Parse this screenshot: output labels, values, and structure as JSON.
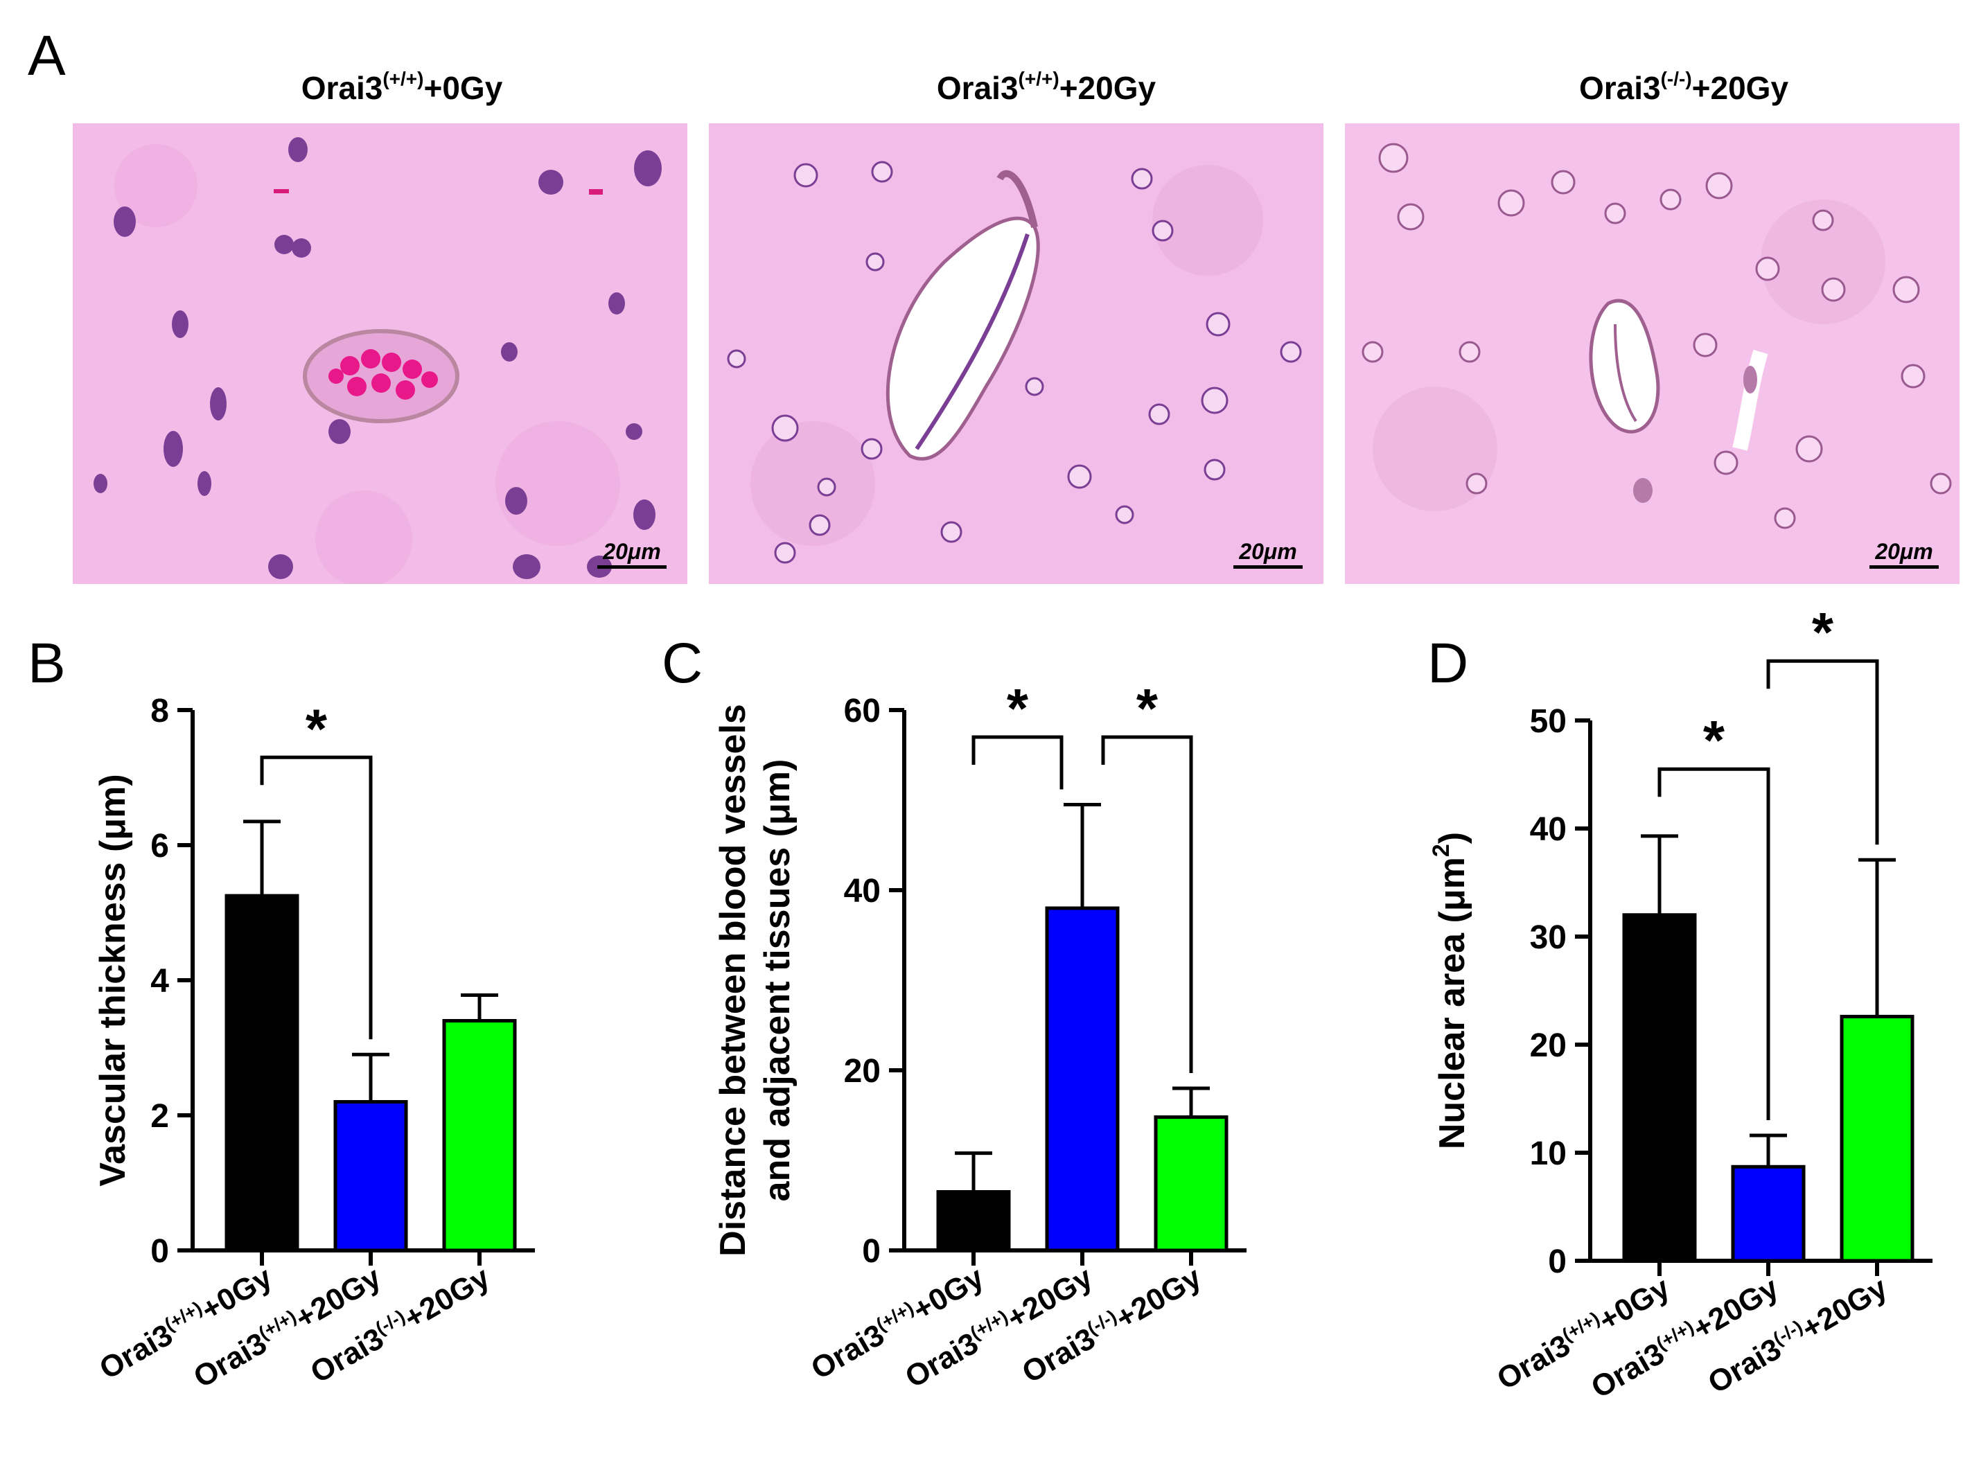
{
  "panel_A": {
    "letter": "A",
    "scale_bar": "20μm",
    "images": [
      {
        "title_prefix": "Orai3",
        "title_sup": "(+/+)",
        "title_suffix": "+0Gy"
      },
      {
        "title_prefix": "Orai3",
        "title_sup": "(+/+)",
        "title_suffix": "+20Gy"
      },
      {
        "title_prefix": "Orai3",
        "title_sup": "(-/-)",
        "title_suffix": "+20Gy"
      }
    ]
  },
  "colors": {
    "bar_group1": "#000000",
    "bar_group2": "#0000ff",
    "bar_group3": "#00ff00",
    "tissue": "#f2b9e6"
  },
  "chart_data": [
    {
      "panel": "B",
      "type": "bar",
      "ylabel": "Vascular thickness (μm)",
      "ylim": [
        0,
        8
      ],
      "yticks": [
        0,
        2,
        4,
        6,
        8
      ],
      "categories": [
        {
          "prefix": "Orai3",
          "sup": "(+/+)",
          "suffix": "+0Gy"
        },
        {
          "prefix": "Orai3",
          "sup": "(+/+)",
          "suffix": "+20Gy"
        },
        {
          "prefix": "Orai3",
          "sup": "(-/-)",
          "suffix": "+20Gy"
        }
      ],
      "values": [
        5.25,
        2.2,
        3.4
      ],
      "errors": [
        1.1,
        0.7,
        0.38
      ],
      "significance": [
        {
          "from": 0,
          "to": 1,
          "label": "*",
          "level": 7.3
        }
      ]
    },
    {
      "panel": "C",
      "type": "bar",
      "ylabel": "Distance between blood vessels",
      "ylabel2": "and adjacent tissues (μm)",
      "ylim": [
        0,
        60
      ],
      "yticks": [
        0,
        20,
        40,
        60
      ],
      "categories": [
        {
          "prefix": "Orai3",
          "sup": "(+/+)",
          "suffix": "+0Gy"
        },
        {
          "prefix": "Orai3",
          "sup": "(+/+)",
          "suffix": "+20Gy"
        },
        {
          "prefix": "Orai3",
          "sup": "(-/-)",
          "suffix": "+20Gy"
        }
      ],
      "values": [
        6.5,
        38.0,
        14.8
      ],
      "errors": [
        4.3,
        11.5,
        3.2
      ],
      "significance": [
        {
          "from": 0,
          "to": 1,
          "label": "*",
          "level": 57.0
        },
        {
          "from": 1,
          "to": 2,
          "label": "*",
          "level": 57.0
        }
      ]
    },
    {
      "panel": "D",
      "type": "bar",
      "ylabel": "Nuclear area",
      "ylabel_unit": "(μm",
      "ylabel_unit_sup": "2",
      "ylabel_unit_end": ")",
      "ylim": [
        0,
        50
      ],
      "yticks": [
        0,
        10,
        20,
        30,
        40,
        50
      ],
      "categories": [
        {
          "prefix": "Orai3",
          "sup": "(+/+)",
          "suffix": "+0Gy"
        },
        {
          "prefix": "Orai3",
          "sup": "(+/+)",
          "suffix": "+20Gy"
        },
        {
          "prefix": "Orai3",
          "sup": "(-/-)",
          "suffix": "+20Gy"
        }
      ],
      "values": [
        32.0,
        8.7,
        22.6
      ],
      "errors": [
        7.3,
        2.9,
        14.5
      ],
      "significance": [
        {
          "from": 0,
          "to": 1,
          "label": "*",
          "level": 45.5
        },
        {
          "from": 1,
          "to": 2,
          "label": "*",
          "level": 55.5
        }
      ]
    }
  ]
}
